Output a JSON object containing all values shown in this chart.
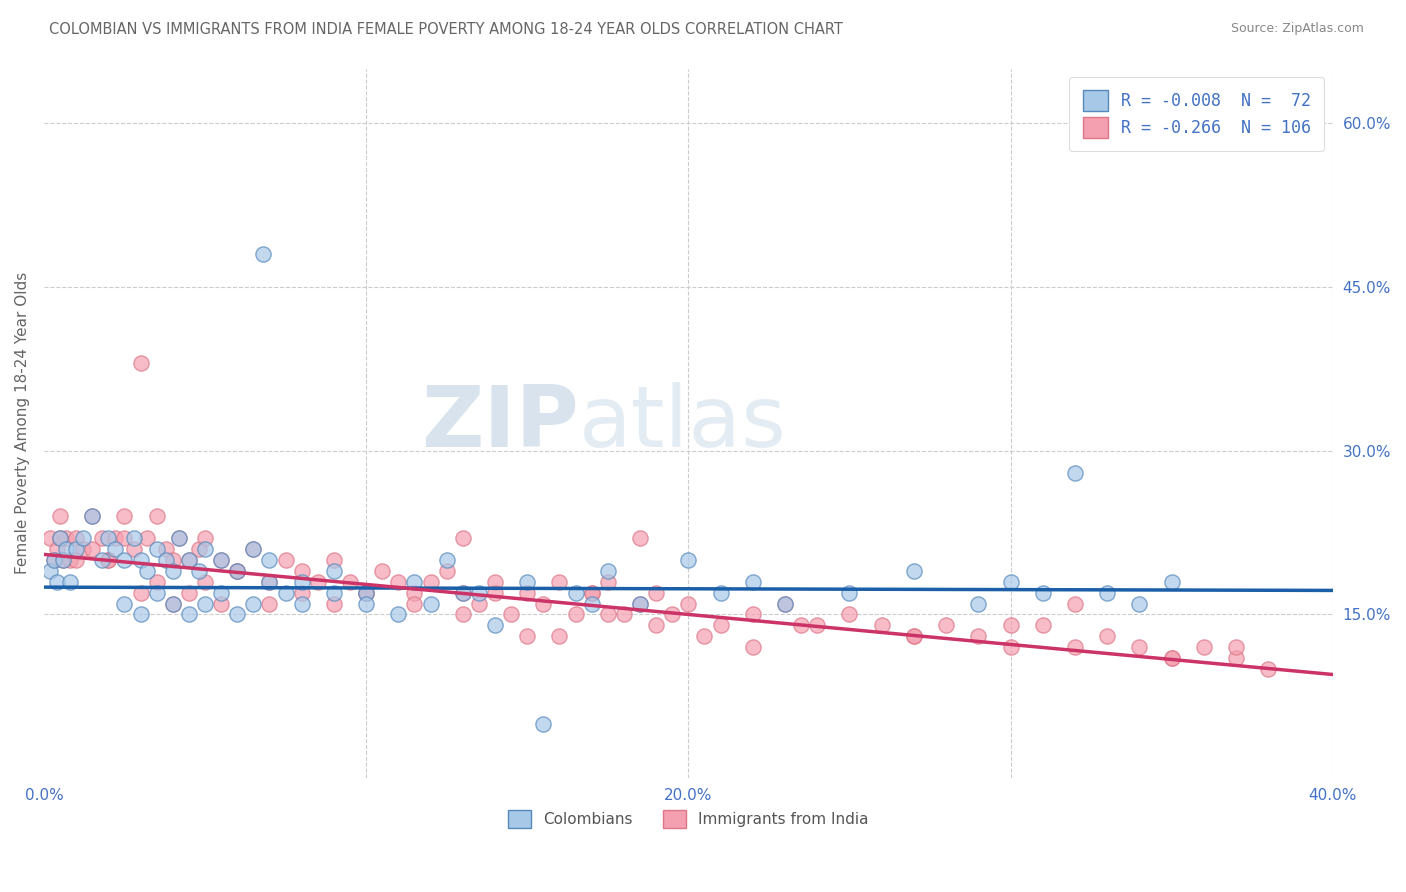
{
  "title": "COLOMBIAN VS IMMIGRANTS FROM INDIA FEMALE POVERTY AMONG 18-24 YEAR OLDS CORRELATION CHART",
  "source": "Source: ZipAtlas.com",
  "ylabel": "Female Poverty Among 18-24 Year Olds",
  "xlim": [
    0.0,
    0.4
  ],
  "ylim": [
    0.0,
    0.65
  ],
  "xticks": [
    0.0,
    0.1,
    0.2,
    0.3,
    0.4
  ],
  "xticklabels": [
    "0.0%",
    "",
    "20.0%",
    "",
    "40.0%"
  ],
  "yticks_right": [
    0.15,
    0.3,
    0.45,
    0.6
  ],
  "yticklabels_right": [
    "15.0%",
    "30.0%",
    "45.0%",
    "60.0%"
  ],
  "hlines": [
    0.15,
    0.3,
    0.45,
    0.6
  ],
  "vlines": [
    0.1,
    0.2,
    0.3,
    0.4
  ],
  "legend1_label": "R = -0.008  N =  72",
  "legend2_label": "R = -0.266  N = 106",
  "legend_colombians": "Colombians",
  "legend_india": "Immigrants from India",
  "blue_color": "#a8c8e8",
  "pink_color": "#f4a0b0",
  "blue_edge_color": "#5588bb",
  "pink_edge_color": "#dd7788",
  "blue_line_color": "#1a5fa8",
  "pink_line_color": "#cc3366",
  "watermark_zip": "ZIP",
  "watermark_atlas": "atlas",
  "background_color": "#ffffff",
  "grid_color": "#cccccc",
  "title_color": "#666666",
  "axis_label_color": "#666666",
  "tick_label_color": "#4472c4",
  "blue_scatter_x": [
    0.068,
    0.002,
    0.003,
    0.004,
    0.005,
    0.006,
    0.007,
    0.008,
    0.01,
    0.012,
    0.015,
    0.018,
    0.02,
    0.022,
    0.025,
    0.028,
    0.03,
    0.032,
    0.035,
    0.038,
    0.04,
    0.042,
    0.045,
    0.048,
    0.05,
    0.055,
    0.06,
    0.065,
    0.07,
    0.08,
    0.09,
    0.1,
    0.115,
    0.125,
    0.135,
    0.15,
    0.165,
    0.175,
    0.185,
    0.2,
    0.21,
    0.22,
    0.23,
    0.25,
    0.27,
    0.29,
    0.3,
    0.31,
    0.32,
    0.33,
    0.34,
    0.35,
    0.025,
    0.03,
    0.035,
    0.04,
    0.045,
    0.05,
    0.055,
    0.06,
    0.065,
    0.07,
    0.075,
    0.08,
    0.09,
    0.1,
    0.11,
    0.12,
    0.13,
    0.14,
    0.155,
    0.17
  ],
  "blue_scatter_y": [
    0.48,
    0.19,
    0.2,
    0.18,
    0.22,
    0.2,
    0.21,
    0.18,
    0.21,
    0.22,
    0.24,
    0.2,
    0.22,
    0.21,
    0.2,
    0.22,
    0.2,
    0.19,
    0.21,
    0.2,
    0.19,
    0.22,
    0.2,
    0.19,
    0.21,
    0.2,
    0.19,
    0.21,
    0.2,
    0.18,
    0.19,
    0.17,
    0.18,
    0.2,
    0.17,
    0.18,
    0.17,
    0.19,
    0.16,
    0.2,
    0.17,
    0.18,
    0.16,
    0.17,
    0.19,
    0.16,
    0.18,
    0.17,
    0.28,
    0.17,
    0.16,
    0.18,
    0.16,
    0.15,
    0.17,
    0.16,
    0.15,
    0.16,
    0.17,
    0.15,
    0.16,
    0.18,
    0.17,
    0.16,
    0.17,
    0.16,
    0.15,
    0.16,
    0.17,
    0.14,
    0.05,
    0.16
  ],
  "pink_scatter_x": [
    0.002,
    0.003,
    0.004,
    0.005,
    0.006,
    0.007,
    0.008,
    0.01,
    0.012,
    0.015,
    0.018,
    0.02,
    0.022,
    0.025,
    0.028,
    0.03,
    0.032,
    0.035,
    0.038,
    0.04,
    0.042,
    0.045,
    0.048,
    0.05,
    0.055,
    0.06,
    0.065,
    0.07,
    0.075,
    0.08,
    0.085,
    0.09,
    0.095,
    0.1,
    0.105,
    0.11,
    0.115,
    0.12,
    0.125,
    0.13,
    0.135,
    0.14,
    0.15,
    0.155,
    0.16,
    0.165,
    0.17,
    0.175,
    0.18,
    0.185,
    0.19,
    0.195,
    0.2,
    0.21,
    0.22,
    0.23,
    0.24,
    0.25,
    0.26,
    0.27,
    0.28,
    0.29,
    0.3,
    0.31,
    0.32,
    0.33,
    0.34,
    0.35,
    0.36,
    0.37,
    0.38,
    0.005,
    0.01,
    0.015,
    0.02,
    0.025,
    0.03,
    0.035,
    0.04,
    0.045,
    0.05,
    0.055,
    0.06,
    0.07,
    0.08,
    0.09,
    0.1,
    0.115,
    0.13,
    0.145,
    0.16,
    0.175,
    0.19,
    0.205,
    0.22,
    0.235,
    0.13,
    0.14,
    0.15,
    0.17,
    0.185,
    0.27,
    0.3,
    0.32,
    0.35,
    0.37
  ],
  "pink_scatter_y": [
    0.22,
    0.2,
    0.21,
    0.24,
    0.2,
    0.22,
    0.2,
    0.22,
    0.21,
    0.24,
    0.22,
    0.2,
    0.22,
    0.24,
    0.21,
    0.38,
    0.22,
    0.24,
    0.21,
    0.2,
    0.22,
    0.2,
    0.21,
    0.22,
    0.2,
    0.19,
    0.21,
    0.18,
    0.2,
    0.19,
    0.18,
    0.2,
    0.18,
    0.17,
    0.19,
    0.18,
    0.17,
    0.18,
    0.19,
    0.17,
    0.16,
    0.18,
    0.17,
    0.16,
    0.18,
    0.15,
    0.17,
    0.18,
    0.15,
    0.16,
    0.17,
    0.15,
    0.16,
    0.14,
    0.15,
    0.16,
    0.14,
    0.15,
    0.14,
    0.13,
    0.14,
    0.13,
    0.12,
    0.14,
    0.12,
    0.13,
    0.12,
    0.11,
    0.12,
    0.11,
    0.1,
    0.22,
    0.2,
    0.21,
    0.2,
    0.22,
    0.17,
    0.18,
    0.16,
    0.17,
    0.18,
    0.16,
    0.19,
    0.16,
    0.17,
    0.16,
    0.17,
    0.16,
    0.15,
    0.15,
    0.13,
    0.15,
    0.14,
    0.13,
    0.12,
    0.14,
    0.22,
    0.17,
    0.13,
    0.17,
    0.22,
    0.13,
    0.14,
    0.16,
    0.11,
    0.12
  ]
}
